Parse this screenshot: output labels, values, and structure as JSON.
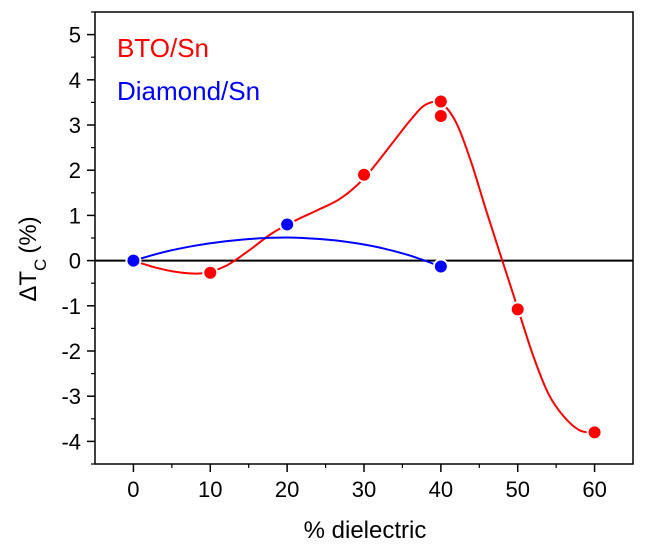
{
  "chart_data": {
    "type": "scatter",
    "xlabel": "% dielectric",
    "ylabel_main": "ΔT",
    "ylabel_sub": "C",
    "ylabel_unit": "(%)",
    "xlim": [
      -5,
      65
    ],
    "ylim": [
      -4.5,
      5.5
    ],
    "xticks": [
      0,
      10,
      20,
      30,
      40,
      50,
      60
    ],
    "yticks": [
      5,
      4,
      3,
      2,
      1,
      0,
      -1,
      -2,
      -3,
      -4
    ],
    "zero_line": true,
    "legend_position": "top-left",
    "series": [
      {
        "name": "BTO/Sn",
        "color": "#ff0000",
        "points": [
          [
            0,
            0.0
          ],
          [
            10,
            -0.27
          ],
          [
            20,
            0.8
          ],
          [
            30,
            1.9
          ],
          [
            40,
            3.52
          ],
          [
            40,
            3.2
          ],
          [
            50,
            -1.08
          ],
          [
            60,
            -3.8
          ]
        ],
        "curve": [
          [
            0,
            0.0
          ],
          [
            3,
            -0.16
          ],
          [
            6,
            -0.26
          ],
          [
            9,
            -0.28
          ],
          [
            12,
            -0.12
          ],
          [
            15,
            0.22
          ],
          [
            18,
            0.6
          ],
          [
            21,
            0.88
          ],
          [
            24,
            1.12
          ],
          [
            27,
            1.38
          ],
          [
            30,
            1.82
          ],
          [
            33,
            2.45
          ],
          [
            36,
            3.1
          ],
          [
            38,
            3.45
          ],
          [
            40,
            3.48
          ],
          [
            42,
            3.05
          ],
          [
            44,
            2.15
          ],
          [
            46,
            1.05
          ],
          [
            48,
            0.0
          ],
          [
            50,
            -1.05
          ],
          [
            52,
            -2.1
          ],
          [
            54,
            -2.95
          ],
          [
            56,
            -3.45
          ],
          [
            58,
            -3.75
          ],
          [
            60,
            -3.82
          ]
        ]
      },
      {
        "name": "Diamond/Sn",
        "color": "#0000ff",
        "points": [
          [
            0,
            0.0
          ],
          [
            20,
            0.8
          ],
          [
            40,
            -0.13
          ]
        ],
        "curve": [
          [
            0,
            0.0
          ],
          [
            4,
            0.19
          ],
          [
            8,
            0.33
          ],
          [
            12,
            0.43
          ],
          [
            16,
            0.49
          ],
          [
            20,
            0.51
          ],
          [
            24,
            0.48
          ],
          [
            28,
            0.41
          ],
          [
            32,
            0.29
          ],
          [
            36,
            0.11
          ],
          [
            40,
            -0.13
          ]
        ]
      }
    ]
  }
}
